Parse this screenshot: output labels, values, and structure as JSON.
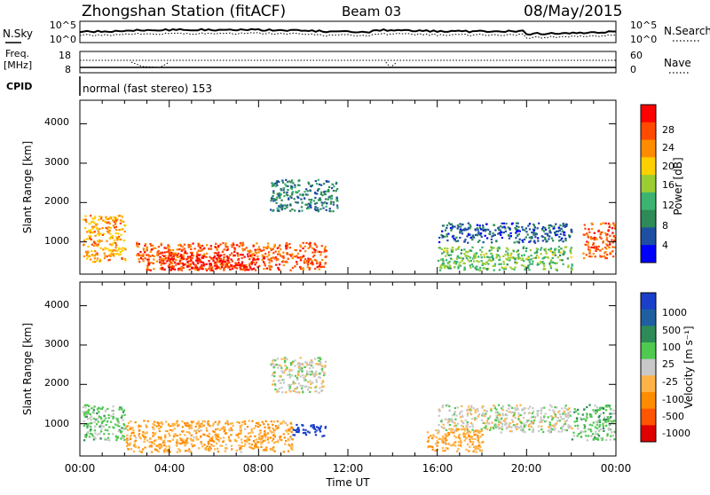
{
  "header": {
    "station": "Zhongshan Station (fitACF)",
    "beam": "Beam 03",
    "date": "08/May/2015"
  },
  "nsky_panel": {
    "left_label": "N.Sky",
    "left_ticks": [
      "10^5",
      "10^0"
    ],
    "right_ticks": [
      "10^5",
      "10^0"
    ],
    "right_label": "N.Search"
  },
  "freq_panel": {
    "left_label_line1": "Freq.",
    "left_label_line2": "[MHz]",
    "left_ticks": [
      "18",
      "8"
    ],
    "right_ticks": [
      "60",
      "0"
    ],
    "right_label": "Nave"
  },
  "cpid_panel": {
    "label": "CPID",
    "text": "normal (fast stereo) 153"
  },
  "power_panel": {
    "ylabel": "Slant Range [km]",
    "yticks": [
      "4000",
      "3000",
      "2000",
      "1000"
    ],
    "colorbar_label": "Power [dB]",
    "colorbar_ticks": [
      "28",
      "24",
      "20",
      "16",
      "12",
      "8",
      "4"
    ],
    "colorbar_colors": [
      "#ff0000",
      "#ff4a00",
      "#ff8c00",
      "#ffd000",
      "#9acd32",
      "#3cb371",
      "#2e8b57",
      "#1e4fa0",
      "#0000ff"
    ]
  },
  "velocity_panel": {
    "ylabel": "Slant Range [km]",
    "yticks": [
      "4000",
      "3000",
      "2000",
      "1000"
    ],
    "colorbar_label": "Velocity [m s⁻¹]",
    "colorbar_ticks": [
      "1000",
      "500",
      "100",
      "25",
      "-25",
      "-100",
      "-500",
      "-1000"
    ],
    "colorbar_colors": [
      "#1a3fc8",
      "#1f5fa0",
      "#2e8b57",
      "#4fc94f",
      "#c8c8c8",
      "#ffb347",
      "#ff8c00",
      "#ff5500",
      "#e00000"
    ]
  },
  "x_axis": {
    "ticks": [
      "00:00",
      "04:00",
      "08:00",
      "12:00",
      "16:00",
      "20:00",
      "00:00"
    ],
    "label": "Time UT"
  },
  "chart_data": [
    {
      "type": "line",
      "series": [
        {
          "name": "N.Sky"
        },
        {
          "name": "N.Search"
        }
      ],
      "x": [
        "00:00",
        "04:00",
        "08:00",
        "12:00",
        "16:00",
        "20:00",
        "00:00"
      ],
      "ylim": [
        1,
        100000
      ],
      "yscale": "log"
    },
    {
      "type": "line",
      "series": [
        {
          "name": "Freq."
        },
        {
          "name": "Nave"
        }
      ],
      "x": [
        "00:00",
        "04:00",
        "08:00",
        "12:00",
        "16:00",
        "20:00",
        "00:00"
      ],
      "ylim_left": [
        8,
        18
      ],
      "ylim_right": [
        0,
        60
      ]
    },
    {
      "type": "heatmap",
      "title": "Power [dB]",
      "xlabel": "Time UT",
      "ylabel": "Slant Range [km]",
      "xlim_hours": [
        0,
        24
      ],
      "ylim": [
        180,
        4600
      ],
      "clim": [
        0,
        32
      ],
      "grid": false,
      "regions": [
        {
          "t": [
            0.1,
            2.0
          ],
          "r": [
            500,
            1700
          ],
          "value": 22
        },
        {
          "t": [
            2.5,
            11.0
          ],
          "r": [
            300,
            1000
          ],
          "value": 26
        },
        {
          "t": [
            3.5,
            8.0
          ],
          "r": [
            300,
            700
          ],
          "value": 30
        },
        {
          "t": [
            8.5,
            11.5
          ],
          "r": [
            1800,
            2600
          ],
          "value": 8
        },
        {
          "t": [
            16.0,
            22.0
          ],
          "r": [
            1000,
            1500
          ],
          "value": 6
        },
        {
          "t": [
            16.0,
            22.0
          ],
          "r": [
            300,
            900
          ],
          "value": 14
        },
        {
          "t": [
            22.5,
            24.0
          ],
          "r": [
            600,
            1500
          ],
          "value": 26
        }
      ]
    },
    {
      "type": "heatmap",
      "title": "Velocity [m s⁻¹]",
      "xlabel": "Time UT",
      "ylabel": "Slant Range [km]",
      "xlim_hours": [
        0,
        24
      ],
      "ylim": [
        180,
        4600
      ],
      "clim": [
        -1000,
        1000
      ],
      "grid": false,
      "regions": [
        {
          "t": [
            0.1,
            2.0
          ],
          "r": [
            600,
            1500
          ],
          "value": 200
        },
        {
          "t": [
            2.0,
            9.5
          ],
          "r": [
            300,
            1100
          ],
          "value": -300
        },
        {
          "t": [
            9.5,
            11.0
          ],
          "r": [
            700,
            1000
          ],
          "value": 1000
        },
        {
          "t": [
            8.5,
            11.0
          ],
          "r": [
            1800,
            2700
          ],
          "value": 0
        },
        {
          "t": [
            16.0,
            22.0
          ],
          "r": [
            800,
            1500
          ],
          "value": 0
        },
        {
          "t": [
            15.5,
            18.0
          ],
          "r": [
            300,
            900
          ],
          "value": -300
        },
        {
          "t": [
            22.0,
            24.0
          ],
          "r": [
            600,
            1500
          ],
          "value": 200
        }
      ]
    }
  ]
}
